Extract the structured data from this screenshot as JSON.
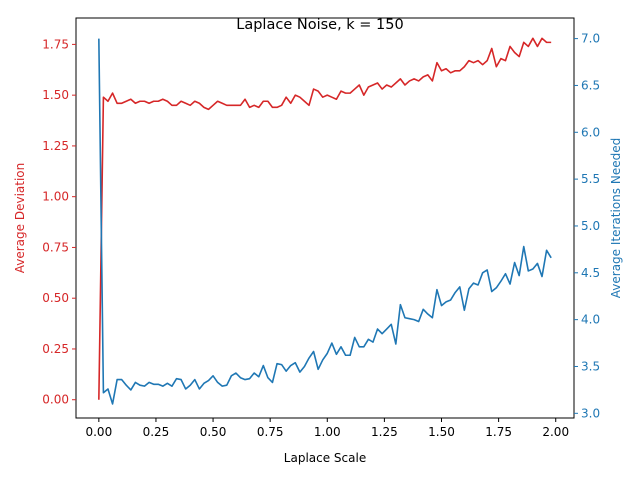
{
  "chart_data": {
    "type": "line",
    "title": "Laplace Noise, k = 150",
    "xlabel": "Laplace Scale",
    "ylabel_left": "Average Deviation",
    "ylabel_right": "Average Iterations Needed",
    "xlim": [
      -0.1,
      2.08
    ],
    "ylim_left": [
      -0.09,
      1.88
    ],
    "ylim_right": [
      2.95,
      7.22
    ],
    "x_ticks": [
      "0.00",
      "0.25",
      "0.50",
      "0.75",
      "1.00",
      "1.25",
      "1.50",
      "1.75",
      "2.00"
    ],
    "y_left_ticks": [
      "0.00",
      "0.25",
      "0.50",
      "0.75",
      "1.00",
      "1.25",
      "1.50",
      "1.75"
    ],
    "y_right_ticks": [
      "3.0",
      "3.5",
      "4.0",
      "4.5",
      "5.0",
      "5.5",
      "6.0",
      "6.5",
      "7.0"
    ],
    "grid": false,
    "left_color": "#d62728",
    "right_color": "#1f77b4",
    "series": [
      {
        "axis": "left",
        "color": "#d62728",
        "x": [
          0.0,
          0.02,
          0.04,
          0.06,
          0.08,
          0.1,
          0.12,
          0.14,
          0.16,
          0.18,
          0.2,
          0.22,
          0.24,
          0.26,
          0.28,
          0.3,
          0.32,
          0.34,
          0.36,
          0.38,
          0.4,
          0.42,
          0.44,
          0.46,
          0.48,
          0.5,
          0.52,
          0.54,
          0.56,
          0.58,
          0.6,
          0.62,
          0.64,
          0.66,
          0.68,
          0.7,
          0.72,
          0.74,
          0.76,
          0.78,
          0.8,
          0.82,
          0.84,
          0.86,
          0.88,
          0.9,
          0.92,
          0.94,
          0.96,
          0.98,
          1.0,
          1.02,
          1.04,
          1.06,
          1.08,
          1.1,
          1.12,
          1.14,
          1.16,
          1.18,
          1.2,
          1.22,
          1.24,
          1.26,
          1.28,
          1.3,
          1.32,
          1.34,
          1.36,
          1.38,
          1.4,
          1.42,
          1.44,
          1.46,
          1.48,
          1.5,
          1.52,
          1.54,
          1.56,
          1.58,
          1.6,
          1.62,
          1.64,
          1.66,
          1.68,
          1.7,
          1.72,
          1.74,
          1.76,
          1.78,
          1.8,
          1.82,
          1.84,
          1.86,
          1.88,
          1.9,
          1.92,
          1.94,
          1.96,
          1.98
        ],
        "y": [
          0.0,
          1.49,
          1.47,
          1.51,
          1.46,
          1.46,
          1.47,
          1.48,
          1.46,
          1.47,
          1.47,
          1.46,
          1.47,
          1.47,
          1.48,
          1.47,
          1.45,
          1.45,
          1.47,
          1.46,
          1.45,
          1.47,
          1.46,
          1.44,
          1.43,
          1.45,
          1.47,
          1.46,
          1.45,
          1.45,
          1.45,
          1.45,
          1.48,
          1.44,
          1.45,
          1.44,
          1.47,
          1.47,
          1.44,
          1.44,
          1.45,
          1.49,
          1.46,
          1.5,
          1.49,
          1.47,
          1.45,
          1.53,
          1.52,
          1.49,
          1.5,
          1.49,
          1.48,
          1.52,
          1.51,
          1.51,
          1.53,
          1.55,
          1.5,
          1.54,
          1.55,
          1.56,
          1.53,
          1.55,
          1.54,
          1.56,
          1.58,
          1.55,
          1.57,
          1.58,
          1.57,
          1.59,
          1.6,
          1.57,
          1.66,
          1.62,
          1.63,
          1.61,
          1.62,
          1.62,
          1.64,
          1.67,
          1.66,
          1.67,
          1.65,
          1.67,
          1.73,
          1.64,
          1.68,
          1.67,
          1.74,
          1.71,
          1.69,
          1.76,
          1.74,
          1.78,
          1.74,
          1.78,
          1.76,
          1.76
        ]
      },
      {
        "axis": "right",
        "color": "#1f77b4",
        "x": [
          0.0,
          0.02,
          0.04,
          0.06,
          0.08,
          0.1,
          0.12,
          0.14,
          0.16,
          0.18,
          0.2,
          0.22,
          0.24,
          0.26,
          0.28,
          0.3,
          0.32,
          0.34,
          0.36,
          0.38,
          0.4,
          0.42,
          0.44,
          0.46,
          0.48,
          0.5,
          0.52,
          0.54,
          0.56,
          0.58,
          0.6,
          0.62,
          0.64,
          0.66,
          0.68,
          0.7,
          0.72,
          0.74,
          0.76,
          0.78,
          0.8,
          0.82,
          0.84,
          0.86,
          0.88,
          0.9,
          0.92,
          0.94,
          0.96,
          0.98,
          1.0,
          1.02,
          1.04,
          1.06,
          1.08,
          1.1,
          1.12,
          1.14,
          1.16,
          1.18,
          1.2,
          1.22,
          1.24,
          1.26,
          1.28,
          1.3,
          1.32,
          1.34,
          1.36,
          1.38,
          1.4,
          1.42,
          1.44,
          1.46,
          1.48,
          1.5,
          1.52,
          1.54,
          1.56,
          1.58,
          1.6,
          1.62,
          1.64,
          1.66,
          1.68,
          1.7,
          1.72,
          1.74,
          1.76,
          1.78,
          1.8,
          1.82,
          1.84,
          1.86,
          1.88,
          1.9,
          1.92,
          1.94,
          1.96,
          1.98
        ],
        "y": [
          7.0,
          3.22,
          3.26,
          3.1,
          3.36,
          3.36,
          3.3,
          3.25,
          3.33,
          3.3,
          3.29,
          3.33,
          3.31,
          3.31,
          3.29,
          3.32,
          3.29,
          3.37,
          3.36,
          3.26,
          3.3,
          3.36,
          3.26,
          3.32,
          3.35,
          3.4,
          3.33,
          3.29,
          3.3,
          3.4,
          3.43,
          3.38,
          3.36,
          3.37,
          3.43,
          3.39,
          3.51,
          3.38,
          3.33,
          3.53,
          3.52,
          3.45,
          3.51,
          3.54,
          3.44,
          3.5,
          3.59,
          3.66,
          3.47,
          3.57,
          3.64,
          3.75,
          3.63,
          3.71,
          3.62,
          3.62,
          3.81,
          3.71,
          3.71,
          3.79,
          3.76,
          3.9,
          3.85,
          3.9,
          3.95,
          3.74,
          4.16,
          4.02,
          4.01,
          4.0,
          3.98,
          4.11,
          4.06,
          4.02,
          4.32,
          4.15,
          4.19,
          4.21,
          4.29,
          4.35,
          4.1,
          4.33,
          4.39,
          4.37,
          4.5,
          4.53,
          4.3,
          4.34,
          4.41,
          4.49,
          4.38,
          4.61,
          4.47,
          4.78,
          4.52,
          4.54,
          4.6,
          4.46,
          4.74,
          4.66
        ]
      }
    ]
  }
}
